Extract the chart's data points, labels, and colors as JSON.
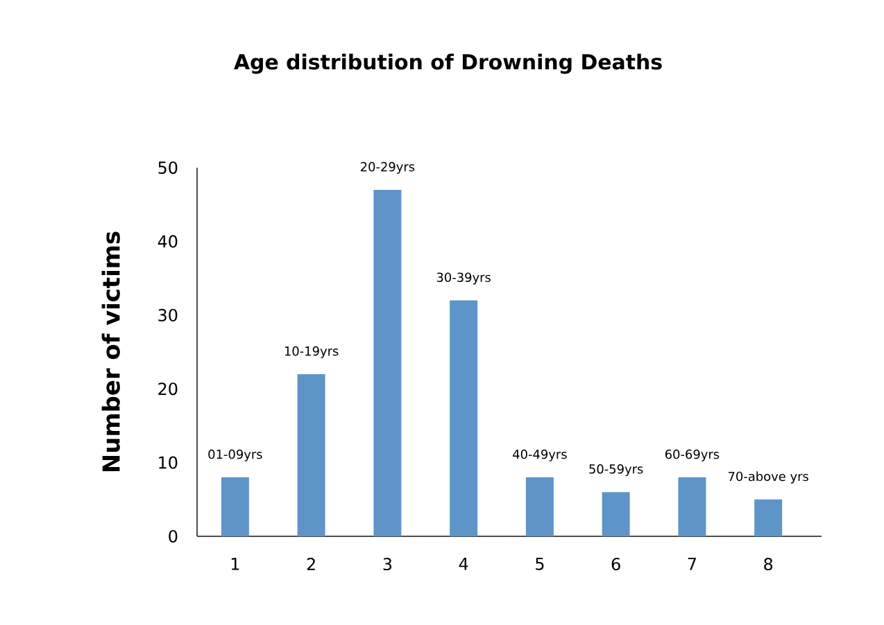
{
  "chart_data": {
    "type": "bar",
    "title": "Age distribution of Drowning Deaths",
    "ylabel": "Number of victims",
    "categories": [
      "1",
      "2",
      "3",
      "4",
      "5",
      "6",
      "7",
      "8"
    ],
    "values": [
      8,
      22,
      47,
      32,
      8,
      6,
      8,
      5
    ],
    "color": "#5e95c9",
    "ylim": [
      0,
      50
    ],
    "yticks": [
      0,
      10,
      20,
      30,
      40,
      50
    ],
    "grid": false,
    "annotations": [
      {
        "text": "01-09yrs",
        "x": "1",
        "y": 8
      },
      {
        "text": "10-19yrs",
        "x": "2",
        "y": 22
      },
      {
        "text": "20-29yrs",
        "x": "3",
        "y": 47
      },
      {
        "text": "30-39yrs",
        "x": "4",
        "y": 32
      },
      {
        "text": "40-49yrs",
        "x": "5",
        "y": 8
      },
      {
        "text": "50-59yrs",
        "x": "6",
        "y": 6
      },
      {
        "text": "60-69yrs",
        "x": "7",
        "y": 8
      },
      {
        "text": "70-above yrs",
        "x": "8",
        "y": 5
      }
    ]
  }
}
